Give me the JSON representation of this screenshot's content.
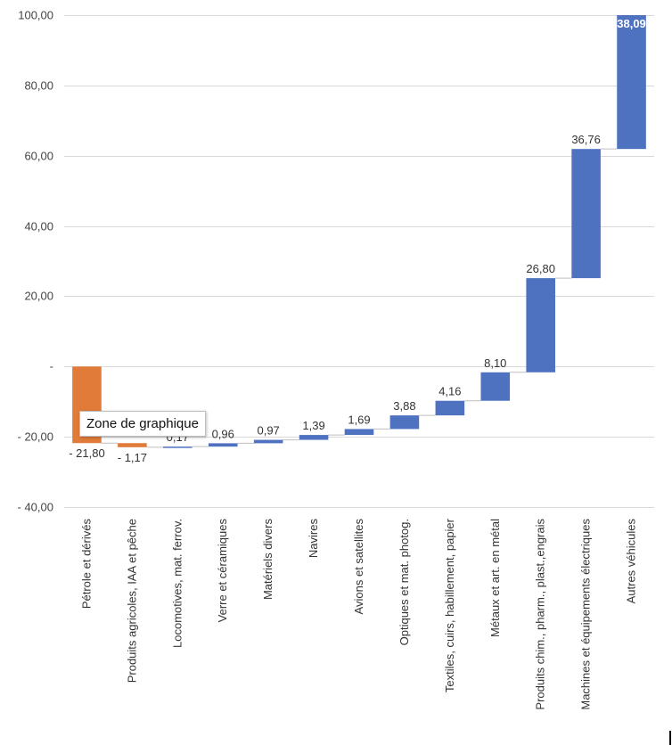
{
  "chart_data": {
    "type": "waterfall",
    "categories": [
      "Pétrole et dérivés",
      "Produits agricoles, IAA et pêche",
      "Locomotives, mat. ferrov.",
      "Verre et céramiques",
      "Matériels divers",
      "Navires",
      "Avions et satellites",
      "Optiques et mat. photog.",
      "Textiles, cuirs, habillement, papier",
      "Métaux et art. en métal",
      "Produits chim., pharm., plast.,engrais",
      "Machines et équipements électriques",
      "Autres véhicules"
    ],
    "values": [
      -21.8,
      -1.17,
      0.17,
      0.96,
      0.97,
      1.39,
      1.69,
      3.88,
      4.16,
      8.1,
      26.8,
      36.76,
      38.09
    ],
    "value_labels": [
      "- 21,80",
      "- 1,17",
      "0,17",
      "0,96",
      "0,97",
      "1,39",
      "1,69",
      "3,88",
      "4,16",
      "8,10",
      "26,80",
      "36,76",
      "38,09"
    ],
    "ylim": [
      -40,
      100
    ],
    "yticks": [
      -40,
      -20,
      0,
      20,
      40,
      60,
      80,
      100
    ],
    "ytick_labels": [
      "- 40,00",
      "- 20,00",
      "-",
      "20,00",
      "40,00",
      "60,00",
      "80,00",
      "100,00"
    ],
    "grid": true,
    "colors": {
      "decrease": "#E07B39",
      "increase": "#4F72C0"
    }
  },
  "tooltip": {
    "text": "Zone de graphique"
  }
}
